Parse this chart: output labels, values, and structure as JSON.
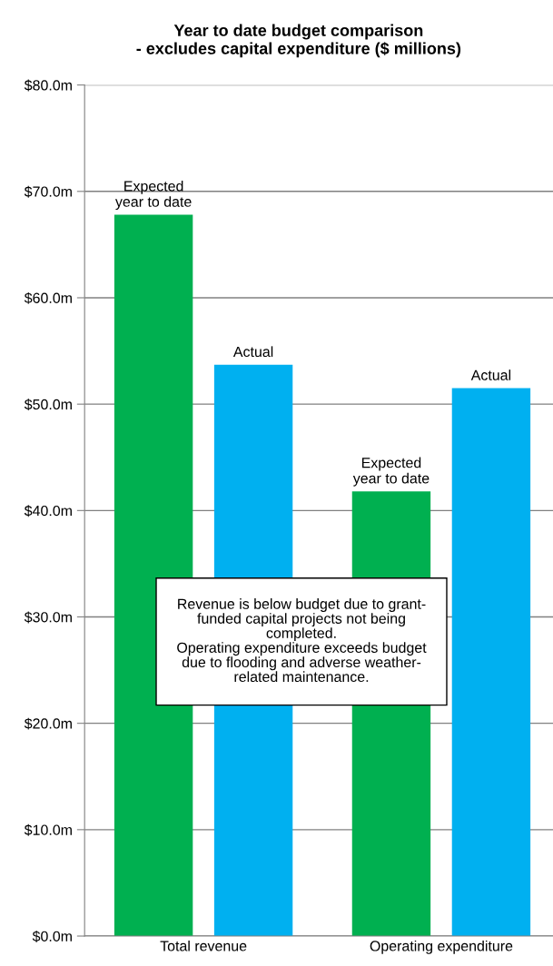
{
  "chart_data": {
    "type": "bar",
    "title": "Year to date budget comparison\n- excludes capital expenditure ($ millions)",
    "categories": [
      "Total revenue",
      "Operating expenditure"
    ],
    "series": [
      {
        "name": "Expected\nyear to date",
        "color": "#00b050",
        "values": [
          67.8,
          41.8
        ]
      },
      {
        "name": "Actual",
        "color": "#00b0f0",
        "values": [
          53.7,
          51.5
        ]
      }
    ],
    "ylim": [
      0,
      80
    ],
    "yticks": [
      {
        "value": 0,
        "label": "$0.0m"
      },
      {
        "value": 10,
        "label": "$10.0m"
      },
      {
        "value": 20,
        "label": "$20.0m"
      },
      {
        "value": 30,
        "label": "$30.0m"
      },
      {
        "value": 40,
        "label": "$40.0m"
      },
      {
        "value": 50,
        "label": "$50.0m"
      },
      {
        "value": 60,
        "label": "$60.0m"
      },
      {
        "value": 70,
        "label": "$70.0m"
      },
      {
        "value": 80,
        "label": "$80.0m"
      }
    ],
    "grid": "y",
    "annotations": [
      "Revenue is below budget due to grant-\nfunded capital projects not being\ncompleted.\nOperating expenditure exceeds budget\ndue to flooding and adverse weather-\nrelated maintenance."
    ]
  }
}
